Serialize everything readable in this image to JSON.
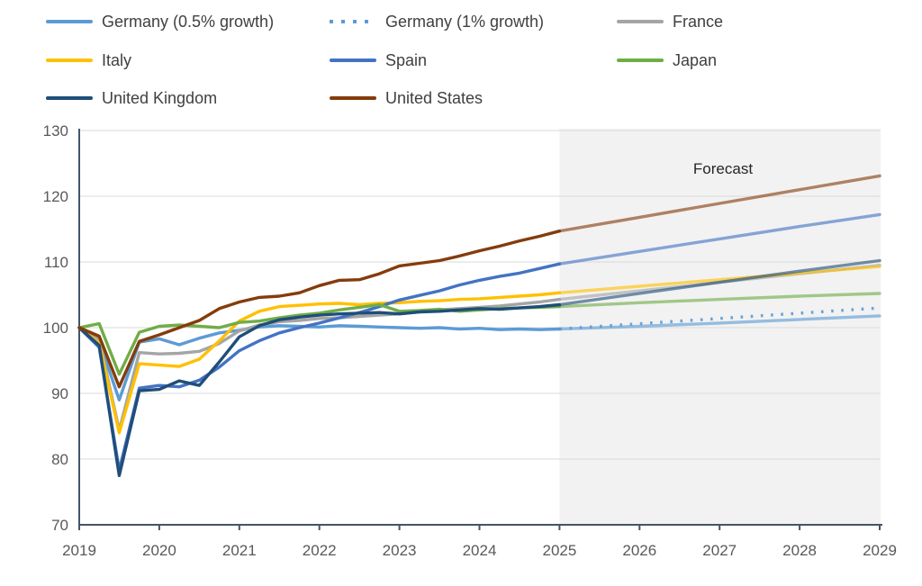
{
  "chart_data": {
    "type": "line",
    "title": "",
    "legend_position": "top",
    "grid": "horizontal",
    "y_axis": {
      "min": 70,
      "max": 130,
      "tick_step": 10,
      "ticks": [
        70,
        80,
        90,
        100,
        110,
        120,
        130
      ]
    },
    "x_axis": {
      "ticks": [
        2019,
        2020,
        2021,
        2022,
        2023,
        2024,
        2025,
        2026,
        2027,
        2028,
        2029
      ]
    },
    "forecast": {
      "label": "Forecast",
      "start": 2025,
      "end": 2029,
      "band_color": "#f2f2f2"
    },
    "axis_color": "#44546a",
    "gridline_color": "#d9d9d9",
    "x_history": [
      2019,
      2019.25,
      2019.5,
      2019.75,
      2020,
      2020.25,
      2020.5,
      2020.75,
      2021,
      2021.25,
      2021.5,
      2021.75,
      2022,
      2022.25,
      2022.5,
      2022.75,
      2023,
      2023.25,
      2023.5,
      2023.75,
      2024,
      2024.25,
      2024.5,
      2024.75,
      2025
    ],
    "x_forecast": [
      2025,
      2026,
      2027,
      2028,
      2029
    ],
    "series": [
      {
        "name": "Germany (0.5% growth)",
        "color": "#5B9BD5",
        "style": "solid",
        "history": [
          100,
          98.0,
          89.0,
          97.8,
          98.3,
          97.4,
          98.4,
          99.2,
          99.6,
          100.1,
          100.3,
          100.2,
          100.1,
          100.3,
          100.2,
          100.1,
          100.0,
          99.9,
          100.0,
          99.8,
          99.9,
          99.7,
          99.8,
          99.7,
          99.8
        ],
        "forecast": [
          99.8,
          100.2,
          100.7,
          101.25,
          101.8
        ]
      },
      {
        "name": "Germany (1% growth)",
        "color": "#5B9BD5",
        "style": "dotted",
        "history": null,
        "forecast": [
          99.8,
          100.6,
          101.4,
          102.2,
          103.0
        ]
      },
      {
        "name": "France",
        "color": "#A5A5A5",
        "style": "solid",
        "history": [
          100,
          98.2,
          84.4,
          96.2,
          96.0,
          96.1,
          96.4,
          97.6,
          99.5,
          100.4,
          100.9,
          101.1,
          101.4,
          101.5,
          101.7,
          101.9,
          102.1,
          102.4,
          102.7,
          102.9,
          103.1,
          103.3,
          103.6,
          103.9,
          104.3
        ],
        "forecast": [
          104.3,
          105.6,
          106.9,
          108.2,
          109.5
        ]
      },
      {
        "name": "Italy",
        "color": "#FFC000",
        "style": "solid",
        "history": [
          100,
          97.6,
          84.0,
          94.5,
          94.3,
          94.1,
          95.2,
          98.0,
          101.0,
          102.5,
          103.2,
          103.4,
          103.6,
          103.7,
          103.5,
          103.7,
          103.8,
          104.0,
          104.1,
          104.3,
          104.4,
          104.6,
          104.8,
          105.0,
          105.3
        ],
        "forecast": [
          105.3,
          106.3,
          107.3,
          108.3,
          109.3
        ]
      },
      {
        "name": "Spain",
        "color": "#4472C4",
        "style": "solid",
        "history": [
          100,
          97.0,
          78.3,
          90.8,
          91.2,
          91.0,
          92.0,
          94.0,
          96.5,
          98.0,
          99.2,
          100.0,
          100.7,
          101.5,
          102.3,
          103.2,
          104.2,
          104.9,
          105.6,
          106.5,
          107.2,
          107.8,
          108.3,
          109.0,
          109.7
        ],
        "forecast": [
          109.7,
          111.6,
          113.5,
          115.4,
          117.2
        ]
      },
      {
        "name": "Japan",
        "color": "#70AD47",
        "style": "solid",
        "history": [
          100,
          100.6,
          92.9,
          99.3,
          100.2,
          100.4,
          100.2,
          100.0,
          100.8,
          101.0,
          101.5,
          101.9,
          102.2,
          102.7,
          103.1,
          103.5,
          102.5,
          102.6,
          102.8,
          102.5,
          102.7,
          102.9,
          103.0,
          103.1,
          103.2
        ],
        "forecast": [
          103.2,
          103.8,
          104.3,
          104.8,
          105.2
        ]
      },
      {
        "name": "United Kingdom",
        "color": "#1F4E79",
        "style": "solid",
        "history": [
          100,
          97.3,
          77.5,
          90.4,
          90.6,
          91.9,
          91.2,
          94.8,
          98.6,
          100.3,
          101.2,
          101.6,
          101.9,
          102.1,
          102.2,
          102.3,
          102.1,
          102.4,
          102.5,
          102.7,
          102.9,
          102.8,
          103.0,
          103.2,
          103.5
        ],
        "forecast": [
          103.5,
          105.2,
          106.9,
          108.6,
          110.2
        ]
      },
      {
        "name": "United States",
        "color": "#843C0C",
        "style": "solid",
        "history": [
          100,
          98.7,
          91.0,
          97.9,
          98.9,
          100.0,
          101.1,
          102.9,
          103.9,
          104.6,
          104.8,
          105.3,
          106.4,
          107.2,
          107.3,
          108.2,
          109.4,
          109.8,
          110.2,
          110.9,
          111.7,
          112.4,
          113.2,
          113.9,
          114.7
        ],
        "forecast": [
          114.7,
          116.8,
          118.9,
          121.0,
          123.1
        ]
      }
    ]
  }
}
